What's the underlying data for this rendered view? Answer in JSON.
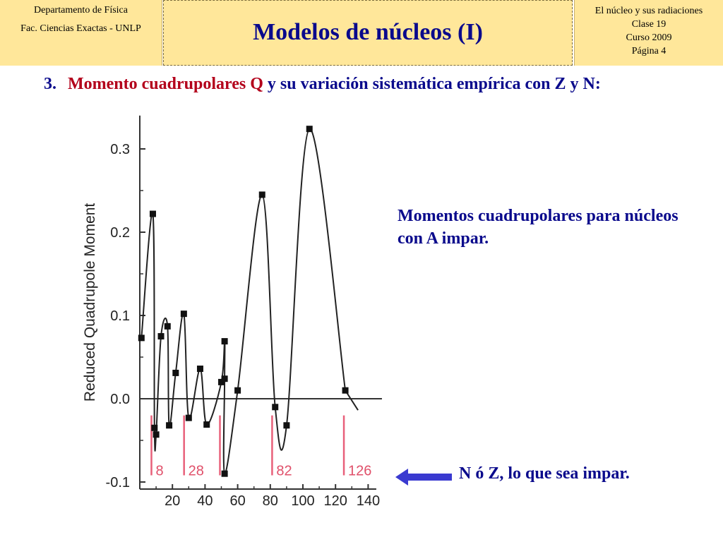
{
  "header": {
    "left": [
      "Departamento de Física",
      "Fac. Ciencias Exactas - UNLP"
    ],
    "title": "Modelos de núcleos (I)",
    "right": [
      "El núcleo y sus radiaciones",
      "Clase 19",
      "Curso 2009",
      "Página 4"
    ]
  },
  "section": {
    "number": "3.",
    "part1": "Momento cuadrupolares Q",
    "part2": "y su variación sistemática empírica con Z y N:"
  },
  "notes": {
    "side": "Momentos cuadrupolares para núcleos con A impar.",
    "arrow": "N ó Z, lo que sea impar."
  },
  "colors": {
    "title": "#0a0a8c",
    "highlight": "#b3001b",
    "header_bg": "#ffe79a",
    "magic": "#e8607a",
    "arrow": "#3a3ad0"
  },
  "chart_data": {
    "type": "scatter",
    "ylabel": "Reduced Quadrupole Moment",
    "xlabel": "",
    "xlim": [
      0,
      145
    ],
    "ylim": [
      -0.1,
      0.34
    ],
    "xticks": [
      20,
      40,
      60,
      80,
      100,
      120,
      140
    ],
    "yticks": [
      {
        "value": 0.3,
        "label": "0.3"
      },
      {
        "value": 0.2,
        "label": "0.2"
      },
      {
        "value": 0.1,
        "label": "0.1"
      },
      {
        "value": 0.0,
        "label": "0.0"
      },
      {
        "value": -0.1,
        "label": "-0.1"
      }
    ],
    "points": [
      [
        1,
        0.073
      ],
      [
        8,
        0.222
      ],
      [
        9,
        -0.035
      ],
      [
        10,
        -0.043
      ],
      [
        13,
        0.075
      ],
      [
        17,
        0.087
      ],
      [
        18,
        -0.032
      ],
      [
        22,
        0.031
      ],
      [
        27,
        0.102
      ],
      [
        30,
        -0.023
      ],
      [
        37,
        0.036
      ],
      [
        41,
        -0.031
      ],
      [
        50,
        0.02
      ],
      [
        52,
        0.069
      ],
      [
        52,
        0.024
      ],
      [
        52,
        -0.09
      ],
      [
        60,
        0.01
      ],
      [
        75,
        0.245
      ],
      [
        83,
        -0.01
      ],
      [
        90,
        -0.032
      ],
      [
        104,
        0.324
      ],
      [
        126,
        0.01
      ]
    ],
    "magic_numbers": [
      {
        "x": 8,
        "label": "8"
      },
      {
        "x": 28,
        "label": "28"
      },
      {
        "x": 50,
        "label": ""
      },
      {
        "x": 82,
        "label": "82"
      },
      {
        "x": 126,
        "label": "126"
      }
    ],
    "grid": false,
    "legend": "none"
  }
}
